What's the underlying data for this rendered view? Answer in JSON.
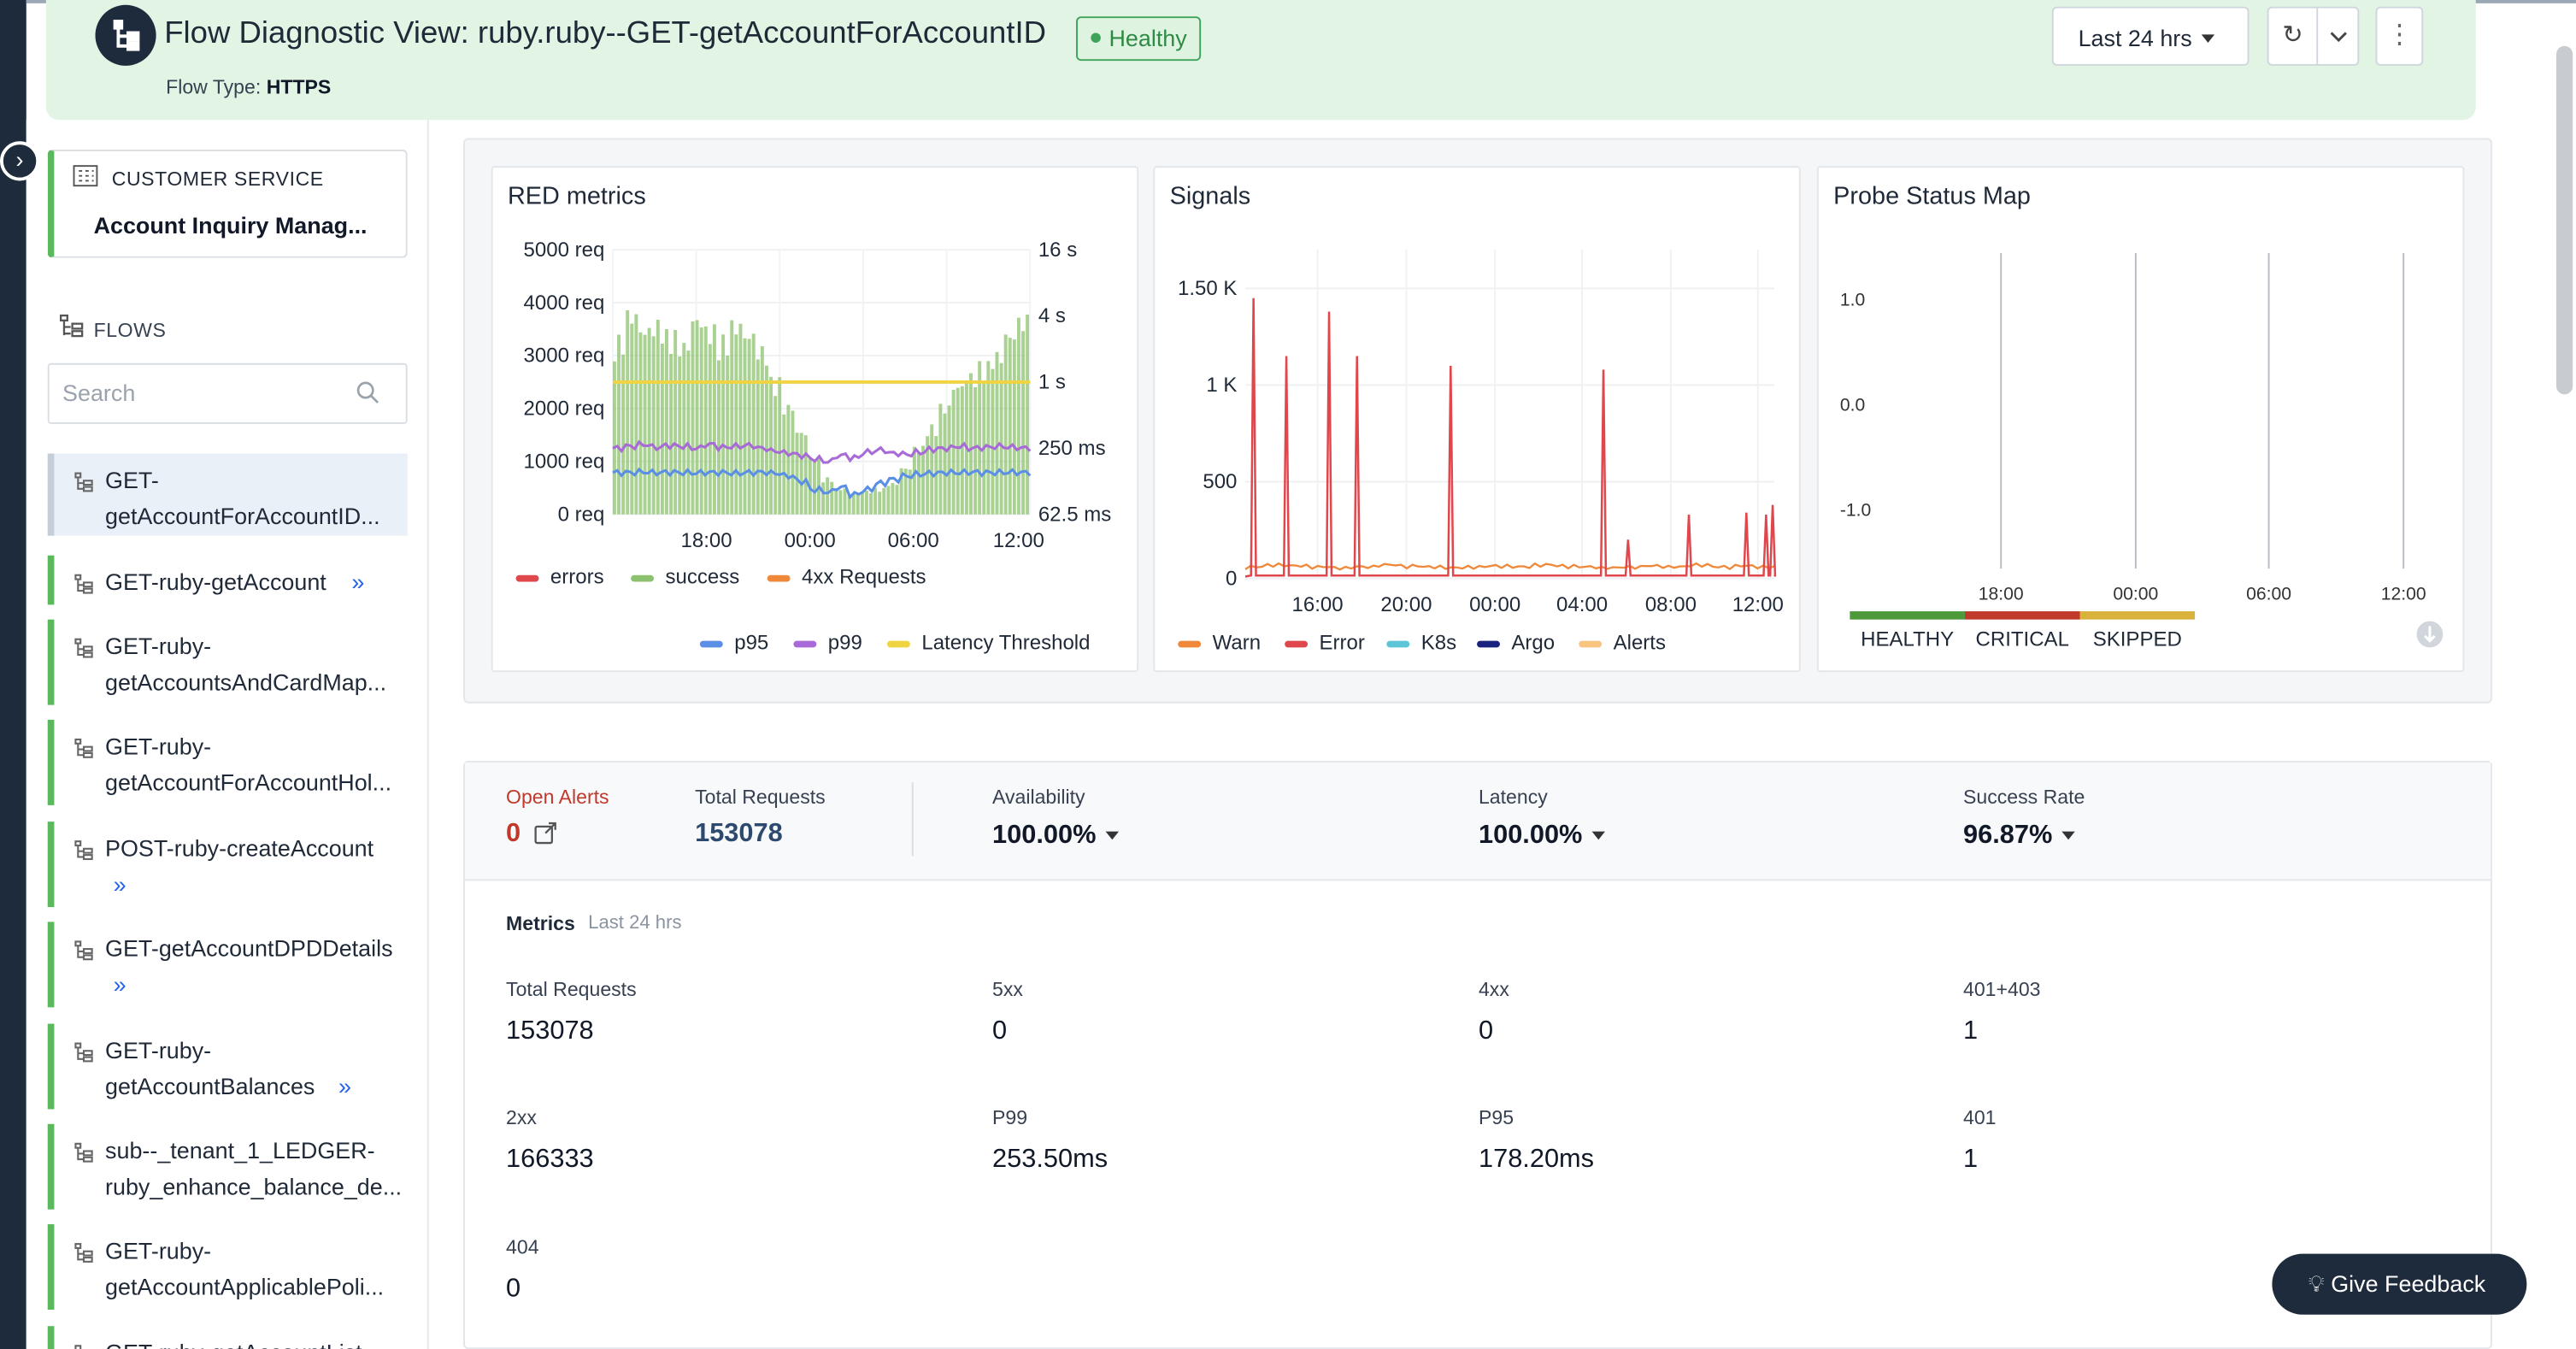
{
  "header": {
    "title": "Flow Diagnostic View: ruby.ruby--GET-getAccountForAccountID",
    "status": "Healthy",
    "flow_type_label": "Flow Type:",
    "flow_type_value": "HTTPS",
    "time_range": "Last 24 hrs",
    "icons": {
      "logo": "flow-tree-icon",
      "refresh": "refresh-icon",
      "dropdown": "chevron-down-icon",
      "menu": "kebab-menu-icon"
    }
  },
  "sidebar": {
    "customer_service_label": "CUSTOMER SERVICE",
    "customer_service_name": "Account Inquiry Manag...",
    "flows_label": "FLOWS",
    "search_placeholder": "Search",
    "flows": [
      {
        "label": "GET-\ngetAccountForAccountID...",
        "active": true
      },
      {
        "label": "GET-ruby-getAccount"
      },
      {
        "label": "GET-ruby-\ngetAccountsAndCardMap..."
      },
      {
        "label": "GET-ruby-\ngetAccountForAccountHol..."
      },
      {
        "label": "POST-ruby-createAccount"
      },
      {
        "label": "GET-getAccountDPDDetails"
      },
      {
        "label": "GET-ruby-\ngetAccountBalances"
      },
      {
        "label": "sub--_tenant_1_LEDGER-\nruby_enhance_balance_de..."
      },
      {
        "label": "GET-ruby-\ngetAccountApplicablePoli..."
      },
      {
        "label": "GET-ruby-getAccountList"
      }
    ]
  },
  "panels": {
    "red_title": "RED metrics",
    "signals_title": "Signals",
    "probe_title": "Probe Status Map"
  },
  "chart_data": [
    {
      "type": "bar",
      "title": "RED metrics",
      "y_left_ticks": [
        "0 req",
        "1000 req",
        "2000 req",
        "3000 req",
        "4000 req",
        "5000 req"
      ],
      "y_right_ticks": [
        "62.5 ms",
        "250 ms",
        "1 s",
        "4 s",
        "16 s"
      ],
      "x_ticks": [
        "18:00",
        "00:00",
        "06:00",
        "12:00"
      ],
      "ylim": [
        0,
        5000
      ],
      "series": [
        {
          "name": "errors",
          "color": "#e0474c",
          "values": [
            0
          ]
        },
        {
          "name": "success",
          "color": "#8cc26e",
          "values": [
            3400,
            3900,
            3600,
            3700,
            3500,
            3300,
            3800,
            3600,
            3400,
            3700,
            3500,
            3200,
            2600,
            2100,
            1600,
            1100,
            700,
            500,
            400,
            450,
            500,
            600,
            900,
            1300,
            1700,
            2100,
            2500,
            2700,
            2900,
            3100,
            3500,
            3800
          ]
        },
        {
          "name": "4xx Requests",
          "color": "#f0883a",
          "values": [
            0
          ]
        }
      ],
      "latency_series": [
        {
          "name": "p95",
          "color": "#5b8fe6",
          "values_ms": [
            150,
            150,
            152,
            150,
            151,
            150,
            149,
            150,
            150,
            148,
            150,
            151,
            148,
            140,
            125,
            105,
            100,
            110,
            95,
            105,
            120,
            130,
            140,
            145,
            148,
            150,
            150,
            151,
            150,
            150,
            151,
            150
          ]
        },
        {
          "name": "p99",
          "color": "#a86ad6",
          "values_ms": [
            250,
            260,
            270,
            255,
            265,
            260,
            250,
            270,
            255,
            260,
            265,
            250,
            235,
            225,
            215,
            200,
            190,
            215,
            205,
            230,
            240,
            225,
            220,
            230,
            245,
            250,
            260,
            250,
            255,
            260,
            255,
            250
          ]
        },
        {
          "name": "Latency Threshold",
          "color": "#f0d341",
          "values_ms": [
            1000
          ]
        }
      ]
    },
    {
      "type": "line",
      "title": "Signals",
      "y_ticks": [
        "0",
        "500",
        "1 K",
        "1.50 K"
      ],
      "ylim": [
        0,
        1500
      ],
      "x_ticks": [
        "16:00",
        "20:00",
        "00:00",
        "04:00",
        "08:00",
        "12:00"
      ],
      "series": [
        {
          "name": "Warn",
          "color": "#f0883a",
          "values": [
            60,
            70,
            65,
            60,
            55,
            60,
            70,
            65,
            60,
            55,
            60,
            65,
            60,
            70,
            65,
            60,
            55,
            60,
            65,
            60,
            70,
            60,
            65,
            60
          ]
        },
        {
          "name": "Error",
          "color": "#e0474c",
          "peaks": [
            1450,
            1150,
            1380,
            1150,
            1100,
            1080,
            200,
            330,
            340,
            330,
            380
          ]
        },
        {
          "name": "K8s",
          "color": "#5ec4d8",
          "values": [
            0
          ]
        },
        {
          "name": "Argo",
          "color": "#1a237e",
          "values": [
            0
          ]
        },
        {
          "name": "Alerts",
          "color": "#f7c580",
          "values": [
            0
          ]
        }
      ]
    },
    {
      "type": "heatmap",
      "title": "Probe Status Map",
      "y_ticks": [
        "1.0",
        "0.0",
        "-1.0"
      ],
      "x_ticks": [
        "18:00",
        "00:00",
        "06:00",
        "12:00"
      ],
      "legend": [
        {
          "name": "HEALTHY",
          "color": "#4e9a3a"
        },
        {
          "name": "CRITICAL",
          "color": "#c0392b"
        },
        {
          "name": "SKIPPED",
          "color": "#d9b23b"
        }
      ]
    }
  ],
  "summary": {
    "open_alerts_label": "Open Alerts",
    "open_alerts_value": "0",
    "total_requests_label": "Total Requests",
    "total_requests_value": "153078",
    "availability_label": "Availability",
    "availability_value": "100.00%",
    "latency_label": "Latency",
    "latency_value": "100.00%",
    "success_rate_label": "Success Rate",
    "success_rate_value": "96.87%",
    "colors": {
      "open_alerts": "#c0392b",
      "total_requests": "#2d4a6e"
    }
  },
  "metrics": {
    "title": "Metrics",
    "range": "Last 24 hrs",
    "items": [
      {
        "label": "Total Requests",
        "value": "153078"
      },
      {
        "label": "5xx",
        "value": "0"
      },
      {
        "label": "4xx",
        "value": "0"
      },
      {
        "label": "401+403",
        "value": "1"
      },
      {
        "label": "2xx",
        "value": "166333"
      },
      {
        "label": "P99",
        "value": "253.50ms"
      },
      {
        "label": "P95",
        "value": "178.20ms"
      },
      {
        "label": "401",
        "value": "1"
      },
      {
        "label": "404",
        "value": "0"
      }
    ]
  },
  "feedback_label": "Give Feedback"
}
